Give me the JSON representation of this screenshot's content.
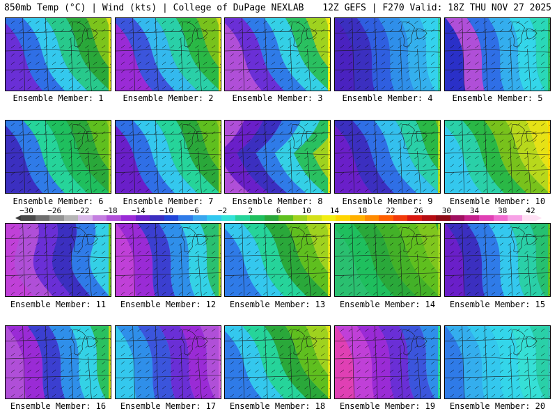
{
  "header": {
    "left": "850mb Temp (°C) | Wind (kts) | College of DuPage NEXLAB",
    "right": "12Z GEFS | F270 Valid: 18Z THU NOV 27 2025"
  },
  "colorbar": {
    "ticks": [
      "−30",
      "−26",
      "−22",
      "−18",
      "−14",
      "−10",
      "−6",
      "−2",
      "2",
      "6",
      "10",
      "14",
      "18",
      "22",
      "26",
      "30",
      "34",
      "38",
      "42"
    ],
    "colors": [
      "#4a4a4a",
      "#6e6e6e",
      "#939393",
      "#b5b5b5",
      "#d8b7e8",
      "#c47fe0",
      "#b04fd8",
      "#9a2bd6",
      "#6a1fc9",
      "#3b2fc0",
      "#2145d8",
      "#2f7be8",
      "#3aa6ef",
      "#32c8f0",
      "#34e3d8",
      "#26d49a",
      "#1fbf5e",
      "#2aa83a",
      "#5fbf1f",
      "#9fd21f",
      "#d4e01a",
      "#f2ee12",
      "#ffd500",
      "#ffb000",
      "#ff8a00",
      "#ff5f00",
      "#f23a0a",
      "#d9170f",
      "#b50c12",
      "#8e0a16",
      "#a01060",
      "#c4208c",
      "#e040b4",
      "#f06ad0",
      "#f7a2e6",
      "#ffe0f4"
    ]
  },
  "members": [
    {
      "label": "Ensemble Member: 1",
      "style": "warm",
      "colors": [
        "#6a2fd6",
        "#2f6fe6",
        "#34c9ee",
        "#28c98c",
        "#2aa83a",
        "#7cc41c",
        "#d9e018",
        "#e8e414"
      ]
    },
    {
      "label": "Ensemble Member: 2",
      "style": "warm",
      "colors": [
        "#9a2bd6",
        "#3b55dc",
        "#34b9ee",
        "#2ad0a8",
        "#2ab846",
        "#78c21c",
        "#c8dc1a",
        "#e6e216"
      ]
    },
    {
      "label": "Ensemble Member: 3",
      "style": "warm",
      "colors": [
        "#b04fd8",
        "#6a2fd6",
        "#2f7be8",
        "#34d0e6",
        "#2ac060",
        "#9fd21f",
        "#e8e614",
        "#f6ee10"
      ]
    },
    {
      "label": "Ensemble Member: 4",
      "style": "cold",
      "colors": [
        "#4a22c0",
        "#3b2fc0",
        "#2f5fe0",
        "#2f8fea",
        "#34b0ee",
        "#34d2ee",
        "#36e0d6",
        "#2cc8a0"
      ]
    },
    {
      "label": "Ensemble Member: 5",
      "style": "cold",
      "colors": [
        "#2a30c8",
        "#b04fd8",
        "#2f6fe6",
        "#34aeee",
        "#34d6ea",
        "#2ad8b8",
        "#28c890",
        "#2ab860"
      ]
    },
    {
      "label": "Ensemble Member: 6",
      "style": "warm",
      "colors": [
        "#3b2fc0",
        "#2f7be8",
        "#26d49a",
        "#1fbf5e",
        "#2aa83a",
        "#5fbf1f",
        "#8fcc1e",
        "#b4d81c"
      ]
    },
    {
      "label": "Ensemble Member: 7",
      "style": "warm",
      "colors": [
        "#6a1fc9",
        "#2f6fe6",
        "#34c8ee",
        "#26d49a",
        "#2aa83a",
        "#5fbf1f",
        "#8fcc1e",
        "#a8d41c"
      ]
    },
    {
      "label": "Ensemble Member: 8",
      "style": "trough",
      "colors": [
        "#b04fd8",
        "#6a1fc9",
        "#3b2fc0",
        "#2f7be8",
        "#34d0e6",
        "#2ac060",
        "#9fd21f",
        "#e0e418"
      ]
    },
    {
      "label": "Ensemble Member: 9",
      "style": "warm",
      "colors": [
        "#6a1fc9",
        "#3b2fc0",
        "#2f6fe6",
        "#34c0ee",
        "#2ad0a8",
        "#2ab846",
        "#78c21c",
        "#b4d81c"
      ]
    },
    {
      "label": "Ensemble Member: 10",
      "style": "warm",
      "colors": [
        "#34c8ee",
        "#2ad0a8",
        "#2ab846",
        "#78c21c",
        "#b8d81c",
        "#e6e216",
        "#f6ee10",
        "#ffd500"
      ]
    },
    {
      "label": "Ensemble Member: 11",
      "style": "coldlow",
      "colors": [
        "#c040d8",
        "#b04fd8",
        "#6a2fd6",
        "#3b2fc0",
        "#2f7be8",
        "#34d0e6",
        "#2ac06a",
        "#6fc21c"
      ]
    },
    {
      "label": "Ensemble Member: 12",
      "style": "cold",
      "colors": [
        "#c040d8",
        "#9a2bd6",
        "#3b3fd0",
        "#2f8fea",
        "#34d2e6",
        "#2ac070",
        "#5fbf1f",
        "#a8d41c"
      ]
    },
    {
      "label": "Ensemble Member: 13",
      "style": "warm",
      "colors": [
        "#2f7be8",
        "#34c8ee",
        "#26d49a",
        "#2aa83a",
        "#5fbf1f",
        "#9fd21f",
        "#d4e01a",
        "#e8e414"
      ]
    },
    {
      "label": "Ensemble Member: 14",
      "style": "warm",
      "colors": [
        "#2ac070",
        "#1fbf5e",
        "#2aa83a",
        "#43b128",
        "#5fbf1f",
        "#7fc61e",
        "#2aa83a",
        "#9fd21f"
      ]
    },
    {
      "label": "Ensemble Member: 15",
      "style": "cold",
      "colors": [
        "#6a1fc9",
        "#3b2fc0",
        "#2f7be8",
        "#34c8ee",
        "#2ad0a8",
        "#26c070",
        "#2aa83a",
        "#5fbf1f"
      ]
    },
    {
      "label": "Ensemble Member: 16",
      "style": "cold",
      "colors": [
        "#b04fd8",
        "#9a2bd6",
        "#3b3fd0",
        "#2f8fea",
        "#34d2e6",
        "#2ac060",
        "#78c21c",
        "#c8dc1a"
      ]
    },
    {
      "label": "Ensemble Member: 17",
      "style": "cold",
      "colors": [
        "#34c8ee",
        "#2f8fea",
        "#3b55dc",
        "#6a2fd6",
        "#9a2bd6",
        "#b04fd8",
        "#c44ad8",
        "#d060e0"
      ]
    },
    {
      "label": "Ensemble Member: 18",
      "style": "warm",
      "colors": [
        "#2f7be8",
        "#34c8ee",
        "#26d49a",
        "#2aa83a",
        "#5fbf1f",
        "#9fd21f",
        "#d4e01a",
        "#e6e216"
      ]
    },
    {
      "label": "Ensemble Member: 19",
      "style": "cold",
      "colors": [
        "#e040b4",
        "#c040d8",
        "#9a2bd6",
        "#6a2fd6",
        "#3b55dc",
        "#2f8fea",
        "#34c8ee",
        "#26d49a"
      ]
    },
    {
      "label": "Ensemble Member: 20",
      "style": "cold",
      "colors": [
        "#2f7be8",
        "#34aeee",
        "#34c8ee",
        "#34d6ea",
        "#36e0d6",
        "#2ad0a8",
        "#2cc88c",
        "#34c0b0"
      ]
    }
  ]
}
